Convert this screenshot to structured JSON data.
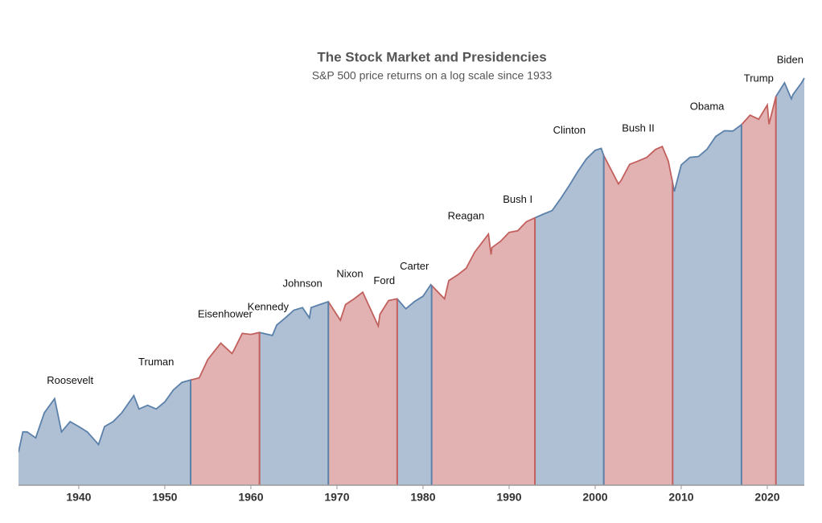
{
  "chart_data": {
    "type": "area",
    "title": "The Stock Market and Presidencies",
    "subtitle": "S&P 500 price returns on a log scale since 1933",
    "log_scale": true,
    "x": [
      1933.0,
      1933.5,
      1934,
      1935,
      1936,
      1937.2,
      1938,
      1939,
      1940,
      1941,
      1942.3,
      1943,
      1944,
      1945,
      1946.4,
      1947,
      1948,
      1949,
      1950,
      1951,
      1952,
      1953,
      1954,
      1955,
      1956.5,
      1957.8,
      1958,
      1959,
      1960,
      1961,
      1962.5,
      1963,
      1964,
      1965,
      1966,
      1966.8,
      1967,
      1968,
      1969,
      1970.4,
      1971,
      1972,
      1973,
      1974.8,
      1975,
      1976,
      1977,
      1978,
      1979,
      1980,
      1980.9,
      1982.5,
      1983,
      1984,
      1985,
      1986,
      1987.6,
      1987.9,
      1988,
      1989,
      1990,
      1991,
      1992,
      1993,
      1994,
      1995,
      1996,
      1997,
      1998,
      1999,
      2000,
      2000.7,
      2001,
      2002.7,
      2003,
      2004,
      2005,
      2006,
      2007,
      2007.8,
      2008.5,
      2009.2,
      2010,
      2011,
      2012,
      2013,
      2014,
      2015,
      2016,
      2017,
      2018,
      2019,
      2020,
      2020.2,
      2021,
      2022,
      2022.8,
      2023,
      2024,
      2024.3
    ],
    "values": [
      7,
      10,
      10,
      9,
      14,
      18,
      10,
      12,
      11,
      10,
      8,
      11,
      12,
      14,
      19,
      15,
      16,
      15,
      17,
      21,
      24,
      25,
      26,
      36,
      48,
      40,
      42,
      57,
      56,
      58,
      55,
      66,
      75,
      86,
      90,
      75,
      90,
      95,
      100,
      72,
      95,
      105,
      118,
      65,
      80,
      102,
      105,
      88,
      100,
      110,
      135,
      105,
      145,
      160,
      180,
      240,
      330,
      230,
      260,
      290,
      340,
      350,
      410,
      440,
      470,
      500,
      620,
      780,
      1000,
      1250,
      1450,
      1500,
      1320,
      800,
      850,
      1130,
      1200,
      1280,
      1470,
      1550,
      1200,
      700,
      1120,
      1280,
      1300,
      1480,
      1850,
      2050,
      2040,
      2280,
      2700,
      2510,
      3230,
      2300,
      3750,
      4780,
      3600,
      3900,
      4800,
      5200
    ],
    "xlim": [
      1933,
      2024.3
    ],
    "ylim": [
      3.9,
      8800
    ],
    "xticks": [
      1940,
      1950,
      1960,
      1970,
      1980,
      1990,
      2000,
      2010,
      2020
    ],
    "presidencies": [
      {
        "name": "Roosevelt",
        "start": 1933,
        "end": 1945,
        "color": "#afc0d5",
        "line_color": "#5b80a9"
      },
      {
        "name": "Truman",
        "start": 1945,
        "end": 1953,
        "color": "#afc0d5",
        "line_color": "#5b80a9"
      },
      {
        "name": "Eisenhower",
        "start": 1953,
        "end": 1961,
        "color": "#e2b2b2",
        "line_color": "#c2605e"
      },
      {
        "name": "Kennedy",
        "start": 1961,
        "end": 1963,
        "color": "#afc0d5",
        "line_color": "#5b80a9"
      },
      {
        "name": "Johnson",
        "start": 1963,
        "end": 1969,
        "color": "#afc0d5",
        "line_color": "#5b80a9"
      },
      {
        "name": "Nixon",
        "start": 1969,
        "end": 1974,
        "color": "#e2b2b2",
        "line_color": "#c2605e"
      },
      {
        "name": "Ford",
        "start": 1974,
        "end": 1977,
        "color": "#e2b2b2",
        "line_color": "#c2605e"
      },
      {
        "name": "Carter",
        "start": 1977,
        "end": 1981,
        "color": "#afc0d5",
        "line_color": "#5b80a9"
      },
      {
        "name": "Reagan",
        "start": 1981,
        "end": 1989,
        "color": "#e2b2b2",
        "line_color": "#c2605e"
      },
      {
        "name": "Bush I",
        "start": 1989,
        "end": 1993,
        "color": "#e2b2b2",
        "line_color": "#c2605e"
      },
      {
        "name": "Clinton",
        "start": 1993,
        "end": 2001,
        "color": "#afc0d5",
        "line_color": "#5b80a9"
      },
      {
        "name": "Bush II",
        "start": 2001,
        "end": 2009,
        "color": "#e2b2b2",
        "line_color": "#c2605e"
      },
      {
        "name": "Obama",
        "start": 2009,
        "end": 2017,
        "color": "#afc0d5",
        "line_color": "#5b80a9"
      },
      {
        "name": "Trump",
        "start": 2017,
        "end": 2021,
        "color": "#e2b2b2",
        "line_color": "#c2605e"
      },
      {
        "name": "Biden",
        "start": 2021,
        "end": 2024.3,
        "color": "#afc0d5",
        "line_color": "#5b80a9"
      }
    ]
  }
}
